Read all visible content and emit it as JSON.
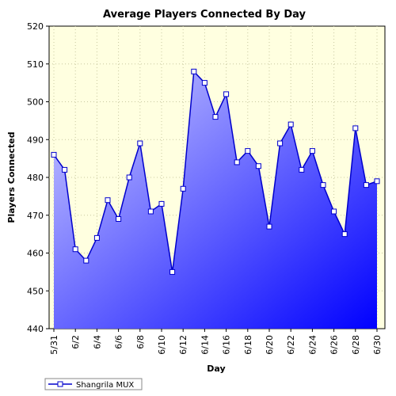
{
  "chart_data": {
    "type": "area",
    "title": "Average Players Connected By Day",
    "xlabel": "Day",
    "ylabel": "Players Connected",
    "ylim": [
      440,
      520
    ],
    "yticks": [
      440,
      450,
      460,
      470,
      480,
      490,
      500,
      510,
      520
    ],
    "grid": true,
    "legend_position": "bottom-left",
    "x": [
      "5/31",
      "6/1",
      "6/2",
      "6/3",
      "6/4",
      "6/5",
      "6/6",
      "6/7",
      "6/8",
      "6/9",
      "6/10",
      "6/11",
      "6/12",
      "6/13",
      "6/14",
      "6/15",
      "6/16",
      "6/17",
      "6/18",
      "6/19",
      "6/20",
      "6/21",
      "6/22",
      "6/23",
      "6/24",
      "6/25",
      "6/26",
      "6/27",
      "6/28",
      "6/29",
      "6/30"
    ],
    "xtick_labels": [
      "5/31",
      "6/2",
      "6/4",
      "6/6",
      "6/8",
      "6/10",
      "6/12",
      "6/14",
      "6/16",
      "6/18",
      "6/20",
      "6/22",
      "6/24",
      "6/26",
      "6/28",
      "6/30"
    ],
    "series": [
      {
        "name": "Shangrila MUX",
        "values": [
          486,
          482,
          461,
          458,
          464,
          474,
          469,
          480,
          489,
          471,
          473,
          455,
          477,
          508,
          505,
          496,
          502,
          484,
          487,
          483,
          467,
          489,
          494,
          482,
          487,
          478,
          471,
          465,
          493,
          478,
          479
        ]
      }
    ],
    "colors": {
      "line": "#0000cc",
      "fill_light": "#ccccff",
      "fill_dark": "#0000ff",
      "plot_bg": "#ffffe0",
      "grid": "#c8c8a0"
    }
  }
}
